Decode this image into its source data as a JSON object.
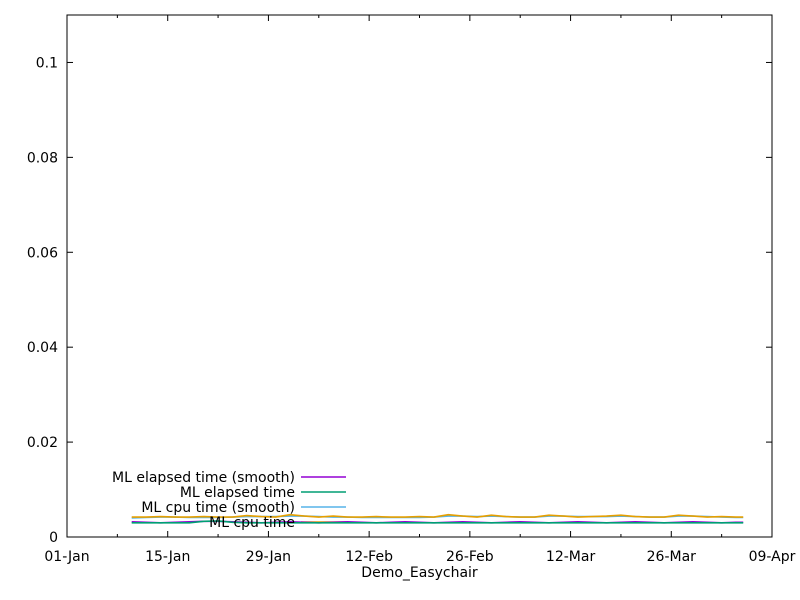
{
  "chart": {
    "background_color": "#ffffff",
    "border_color": "#000000",
    "text_color": "#000000"
  },
  "chart_data": {
    "type": "line",
    "title": "",
    "xlabel": "Demo_Easychair",
    "ylabel": "",
    "grid": false,
    "legend_position": "inside-bottom-left",
    "xlim_days": [
      0,
      98
    ],
    "ylim": [
      0,
      0.11
    ],
    "x_major_ticks": [
      {
        "day": 0,
        "label": "01-Jan"
      },
      {
        "day": 14,
        "label": "15-Jan"
      },
      {
        "day": 28,
        "label": "29-Jan"
      },
      {
        "day": 42,
        "label": "12-Feb"
      },
      {
        "day": 56,
        "label": "26-Feb"
      },
      {
        "day": 70,
        "label": "12-Mar"
      },
      {
        "day": 84,
        "label": "26-Mar"
      },
      {
        "day": 98,
        "label": "09-Apr"
      }
    ],
    "x_minor_tick_days": [
      7,
      21,
      35,
      49,
      63,
      77,
      91
    ],
    "y_ticks": [
      {
        "value": 0,
        "label": "0"
      },
      {
        "value": 0.02,
        "label": "0.02"
      },
      {
        "value": 0.04,
        "label": "0.04"
      },
      {
        "value": 0.06,
        "label": "0.06"
      },
      {
        "value": 0.08,
        "label": "0.08"
      },
      {
        "value": 0.1,
        "label": "0.1"
      }
    ],
    "x_days": [
      9,
      11,
      13,
      15,
      17,
      19,
      21,
      23,
      25,
      27,
      29,
      31,
      33,
      35,
      37,
      39,
      41,
      43,
      45,
      47,
      49,
      51,
      53,
      55,
      57,
      59,
      61,
      63,
      65,
      67,
      69,
      71,
      73,
      75,
      77,
      79,
      81,
      83,
      85,
      87,
      89,
      91,
      93,
      94
    ],
    "series": [
      {
        "name": "ML elapsed time (smooth)",
        "color": "#9400D3",
        "values": [
          0.0032,
          0.0031,
          0.003,
          0.0031,
          0.0032,
          0.0033,
          0.0033,
          0.0032,
          0.0031,
          0.003,
          0.0031,
          0.0032,
          0.0031,
          0.003,
          0.0031,
          0.0032,
          0.0031,
          0.003,
          0.0031,
          0.0032,
          0.0031,
          0.003,
          0.0031,
          0.0032,
          0.0031,
          0.003,
          0.0031,
          0.0032,
          0.0031,
          0.003,
          0.0031,
          0.0032,
          0.0031,
          0.003,
          0.0031,
          0.0032,
          0.0031,
          0.003,
          0.0031,
          0.0032,
          0.0031,
          0.003,
          0.0031,
          0.0031
        ]
      },
      {
        "name": "ML elapsed time",
        "color": "#009E73",
        "values": [
          0.003,
          0.003,
          0.003,
          0.003,
          0.003,
          0.0033,
          0.0034,
          0.0031,
          0.003,
          0.003,
          0.003,
          0.003,
          0.003,
          0.003,
          0.003,
          0.003,
          0.003,
          0.003,
          0.003,
          0.003,
          0.003,
          0.003,
          0.003,
          0.003,
          0.003,
          0.003,
          0.003,
          0.003,
          0.003,
          0.003,
          0.003,
          0.003,
          0.003,
          0.003,
          0.003,
          0.003,
          0.003,
          0.003,
          0.003,
          0.003,
          0.003,
          0.003,
          0.003,
          0.003
        ]
      },
      {
        "name": "ML cpu time (smooth)",
        "color": "#56B4E9",
        "values": [
          0.004,
          0.0041,
          0.0042,
          0.0042,
          0.0041,
          0.0041,
          0.0041,
          0.0042,
          0.0043,
          0.0043,
          0.0043,
          0.0044,
          0.0044,
          0.0043,
          0.0042,
          0.0042,
          0.0041,
          0.0041,
          0.0041,
          0.0041,
          0.0041,
          0.0042,
          0.0044,
          0.0044,
          0.0043,
          0.0044,
          0.0043,
          0.0042,
          0.0042,
          0.0044,
          0.0044,
          0.0043,
          0.0043,
          0.0043,
          0.0044,
          0.0043,
          0.0042,
          0.0042,
          0.0044,
          0.0044,
          0.0043,
          0.0042,
          0.0041,
          0.0041
        ]
      },
      {
        "name": "ML cpu time",
        "color": "#E69F00",
        "values": [
          0.0042,
          0.0042,
          0.0043,
          0.0042,
          0.0042,
          0.0043,
          0.0042,
          0.0042,
          0.0045,
          0.0043,
          0.0042,
          0.0047,
          0.0044,
          0.0042,
          0.0044,
          0.0042,
          0.0042,
          0.0043,
          0.0042,
          0.0042,
          0.0043,
          0.0042,
          0.0047,
          0.0044,
          0.0042,
          0.0046,
          0.0043,
          0.0042,
          0.0042,
          0.0046,
          0.0044,
          0.0042,
          0.0043,
          0.0044,
          0.0046,
          0.0043,
          0.0042,
          0.0042,
          0.0046,
          0.0044,
          0.0042,
          0.0043,
          0.0042,
          0.0042
        ]
      }
    ]
  }
}
